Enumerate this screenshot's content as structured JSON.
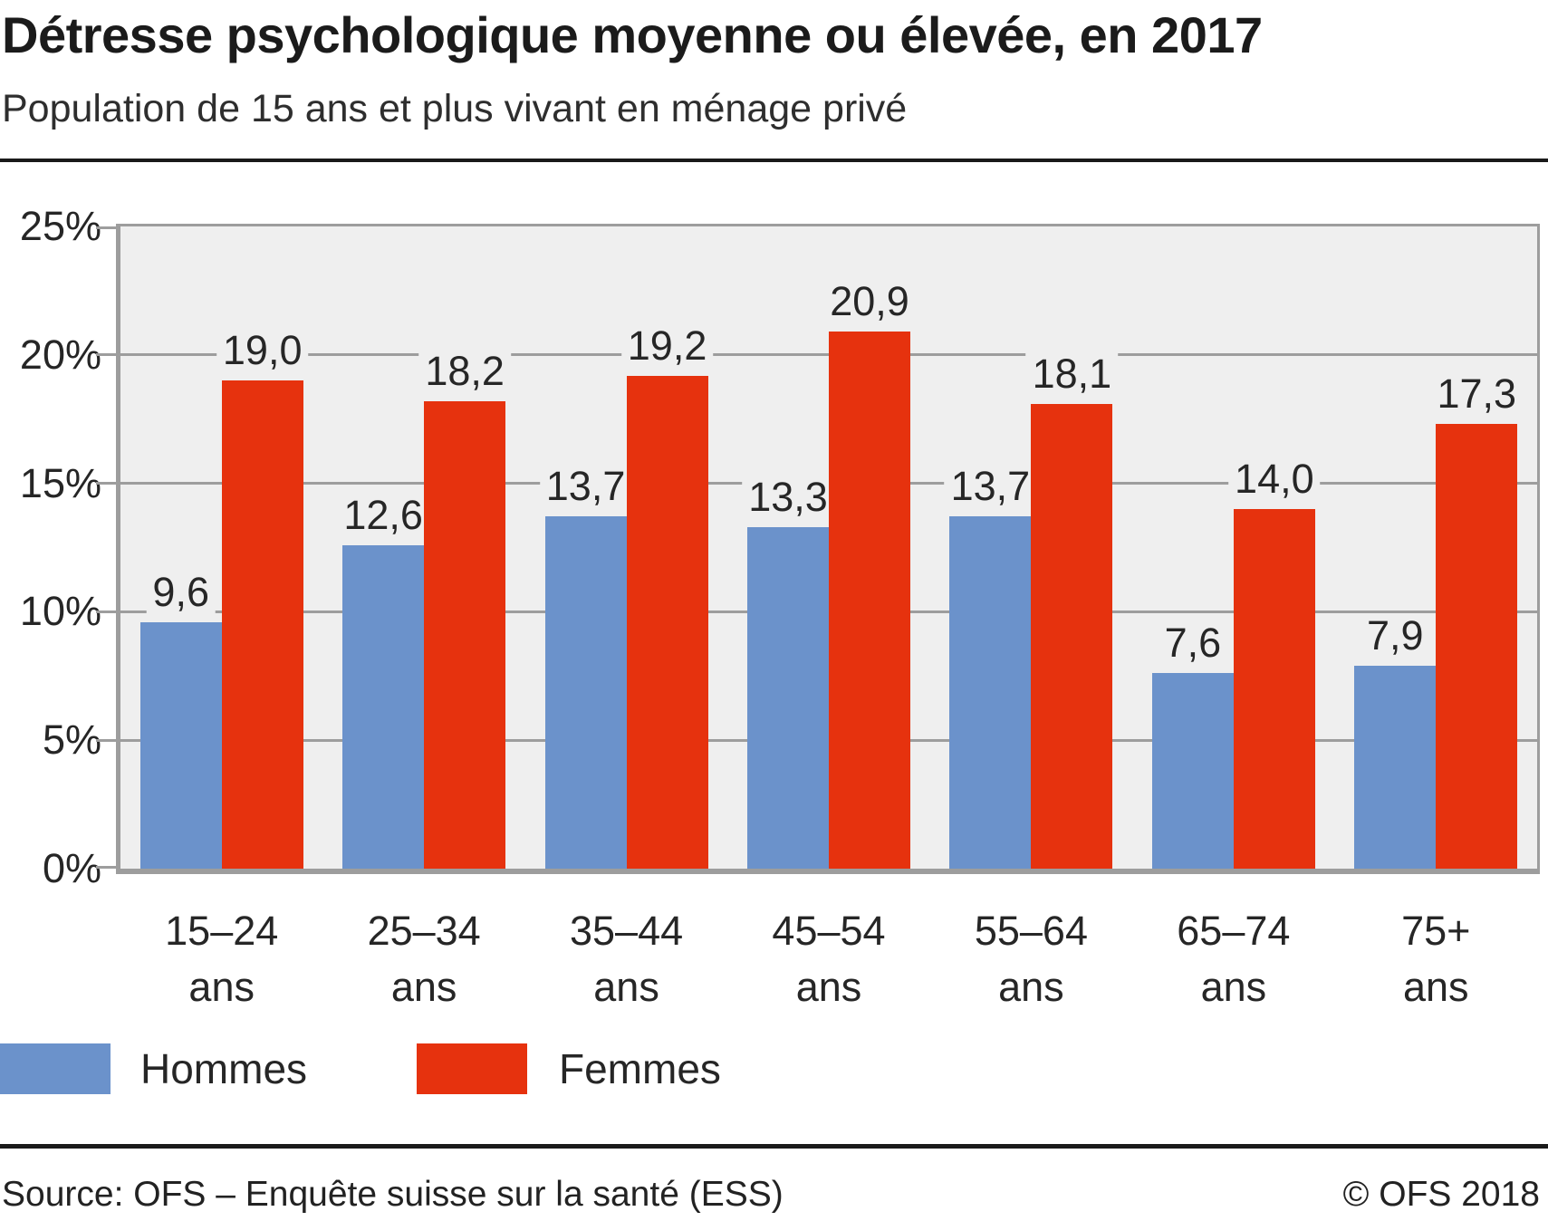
{
  "header": {
    "title": "Détresse psychologique moyenne ou élevée, en 2017",
    "subtitle": "Population de 15 ans et plus vivant en ménage privé"
  },
  "chart_data": {
    "type": "bar",
    "title": "Détresse psychologique moyenne ou élevée, en 2017",
    "subtitle": "Population de 15 ans et plus vivant en ménage privé",
    "categories": [
      "15–24",
      "25–34",
      "35–44",
      "45–54",
      "55–64",
      "65–74",
      "75+"
    ],
    "category_unit": "ans",
    "series": [
      {
        "name": "Hommes",
        "color": "#6b92cb",
        "values": [
          9.6,
          12.6,
          13.7,
          13.3,
          13.7,
          7.6,
          7.9
        ]
      },
      {
        "name": "Femmes",
        "color": "#e6320e",
        "values": [
          19.0,
          18.2,
          19.2,
          20.9,
          18.1,
          14.0,
          17.3
        ]
      }
    ],
    "xlabel": "",
    "ylabel": "",
    "ylim": [
      0,
      25
    ],
    "y_ticks": [
      "0%",
      "5%",
      "10%",
      "15%",
      "20%",
      "25%"
    ],
    "grid": true,
    "plot_background": "#efefef",
    "value_labels_decimal_separator": ",",
    "legend_position": "bottom-left"
  },
  "footer": {
    "source": "Source: OFS – Enquête suisse sur la santé (ESS)",
    "copyright": "© OFS 2018"
  }
}
